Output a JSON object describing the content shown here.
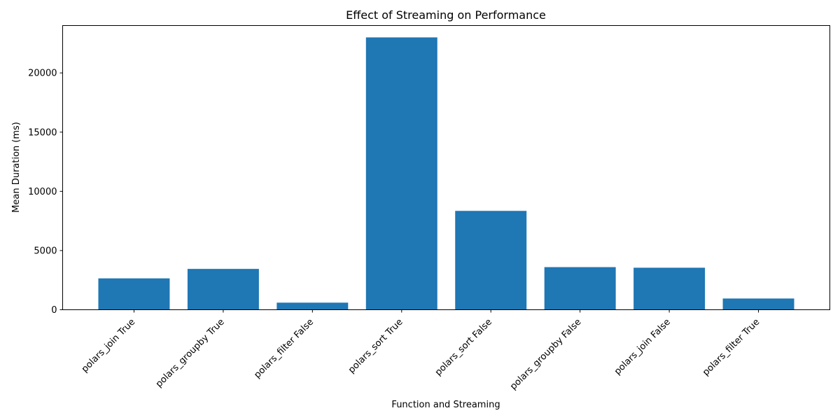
{
  "chart_data": {
    "type": "bar",
    "title": "Effect of Streaming on Performance",
    "xlabel": "Function and Streaming",
    "ylabel": "Mean Duration (ms)",
    "categories": [
      "polars_join True",
      "polars_groupby True",
      "polars_filter False",
      "polars_sort True",
      "polars_sort False",
      "polars_groupby False",
      "polars_join False",
      "polars_filter True"
    ],
    "values": [
      2650,
      3450,
      600,
      23000,
      8350,
      3600,
      3550,
      950
    ],
    "ylim": [
      0,
      24000
    ],
    "yticks": [
      0,
      5000,
      10000,
      15000,
      20000
    ],
    "bar_color": "#1f77b4",
    "grid": false,
    "legend": "none"
  }
}
